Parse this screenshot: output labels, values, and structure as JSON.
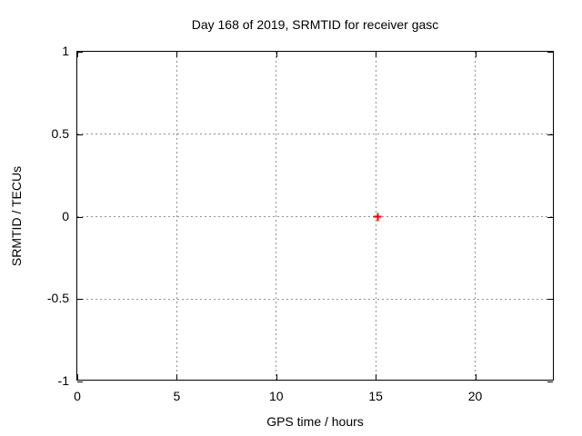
{
  "title": "Day 168 of 2019, SRMTID for receiver gasc",
  "chart_data": {
    "type": "scatter",
    "title": "Day 168 of 2019, SRMTID for receiver gasc",
    "xlabel": "GPS time / hours",
    "ylabel": "SRMTID / TECUs",
    "xlim": [
      0,
      24
    ],
    "ylim": [
      -1,
      1
    ],
    "grid": true,
    "legend": "none",
    "xticks": [
      {
        "value": 0,
        "label": "0"
      },
      {
        "value": 5,
        "label": "5"
      },
      {
        "value": 10,
        "label": "10"
      },
      {
        "value": 15,
        "label": "15"
      },
      {
        "value": 20,
        "label": "20"
      }
    ],
    "yticks": [
      {
        "value": 1,
        "label": "1"
      },
      {
        "value": 0.5,
        "label": "0.5"
      },
      {
        "value": 0,
        "label": "0"
      },
      {
        "value": -0.5,
        "label": "-0.5"
      },
      {
        "value": -1,
        "label": "-1"
      }
    ],
    "series": [
      {
        "name": "SRMTID",
        "marker": "plus",
        "color": "#ff0000",
        "points": [
          {
            "x": 15.1,
            "y": 0.0
          }
        ]
      }
    ]
  },
  "colors": {
    "background": "#ffffff",
    "axis": "#000000",
    "grid": "#909090",
    "marker": "#ff0000",
    "text": "#000000"
  }
}
